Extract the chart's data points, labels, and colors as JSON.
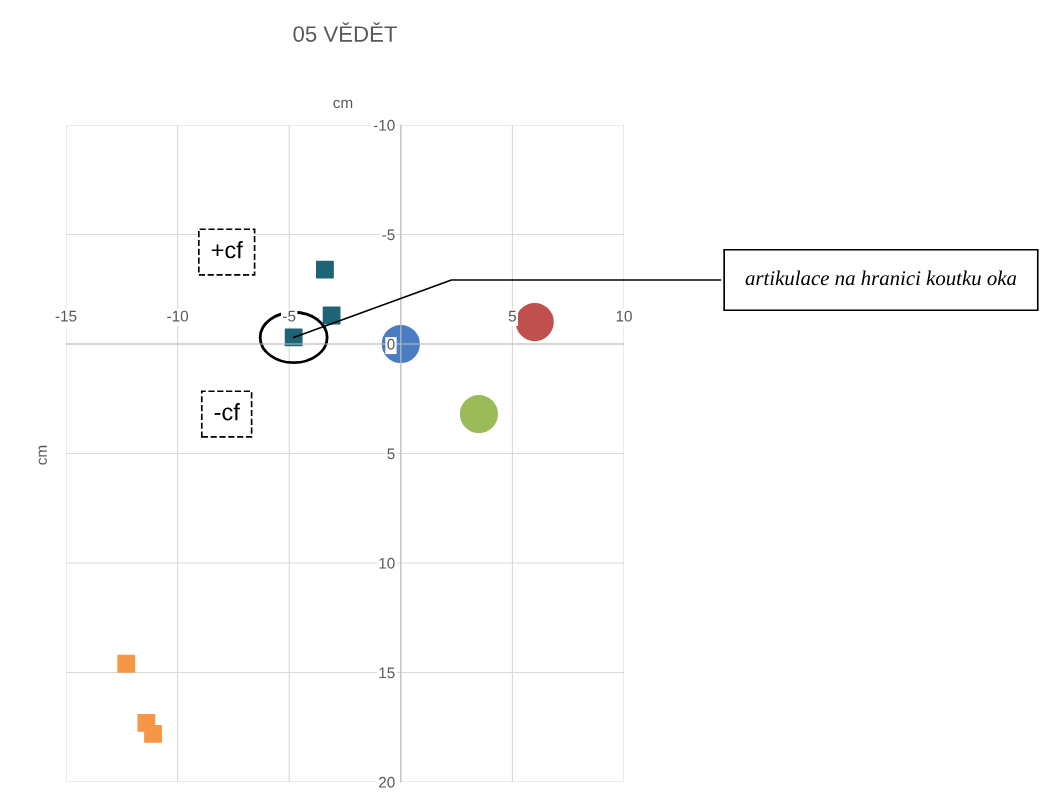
{
  "chart_data": {
    "type": "scatter",
    "title": "05 VĚDĚT",
    "xlabel": "cm",
    "ylabel": "cm",
    "xlim": [
      -15,
      10
    ],
    "xticks": [
      -15,
      -10,
      -5,
      {
        "value": 0,
        "label": null
      },
      5,
      10
    ],
    "ylim": [
      20,
      -10
    ],
    "yticks": [
      -10,
      -5,
      0,
      5,
      10,
      15,
      20
    ],
    "grid": true,
    "legend": false,
    "series": [
      {
        "color": "#4a7cc2",
        "marker": "circle",
        "x": [
          0
        ],
        "values": [
          0
        ]
      },
      {
        "color": "#c0504d",
        "marker": "circle",
        "x": [
          6.0
        ],
        "values": [
          -1.0
        ]
      },
      {
        "color": "#9bbb59",
        "marker": "circle",
        "x": [
          3.5
        ],
        "values": [
          3.2
        ]
      },
      {
        "color": "#1f6377",
        "marker": "square",
        "x": [
          -3.4,
          -3.1,
          -4.8
        ],
        "values": [
          -3.4,
          -1.3,
          -0.3
        ]
      },
      {
        "color": "#f79646",
        "marker": "square",
        "x": [
          -12.3,
          -11.4,
          -11.1
        ],
        "values": [
          14.6,
          17.3,
          17.8
        ]
      }
    ],
    "annotations": [
      "+cf",
      "-cf",
      {
        "text": "artikulace na hranici koutku oka",
        "x": -4.8,
        "y": -0.3
      }
    ]
  }
}
